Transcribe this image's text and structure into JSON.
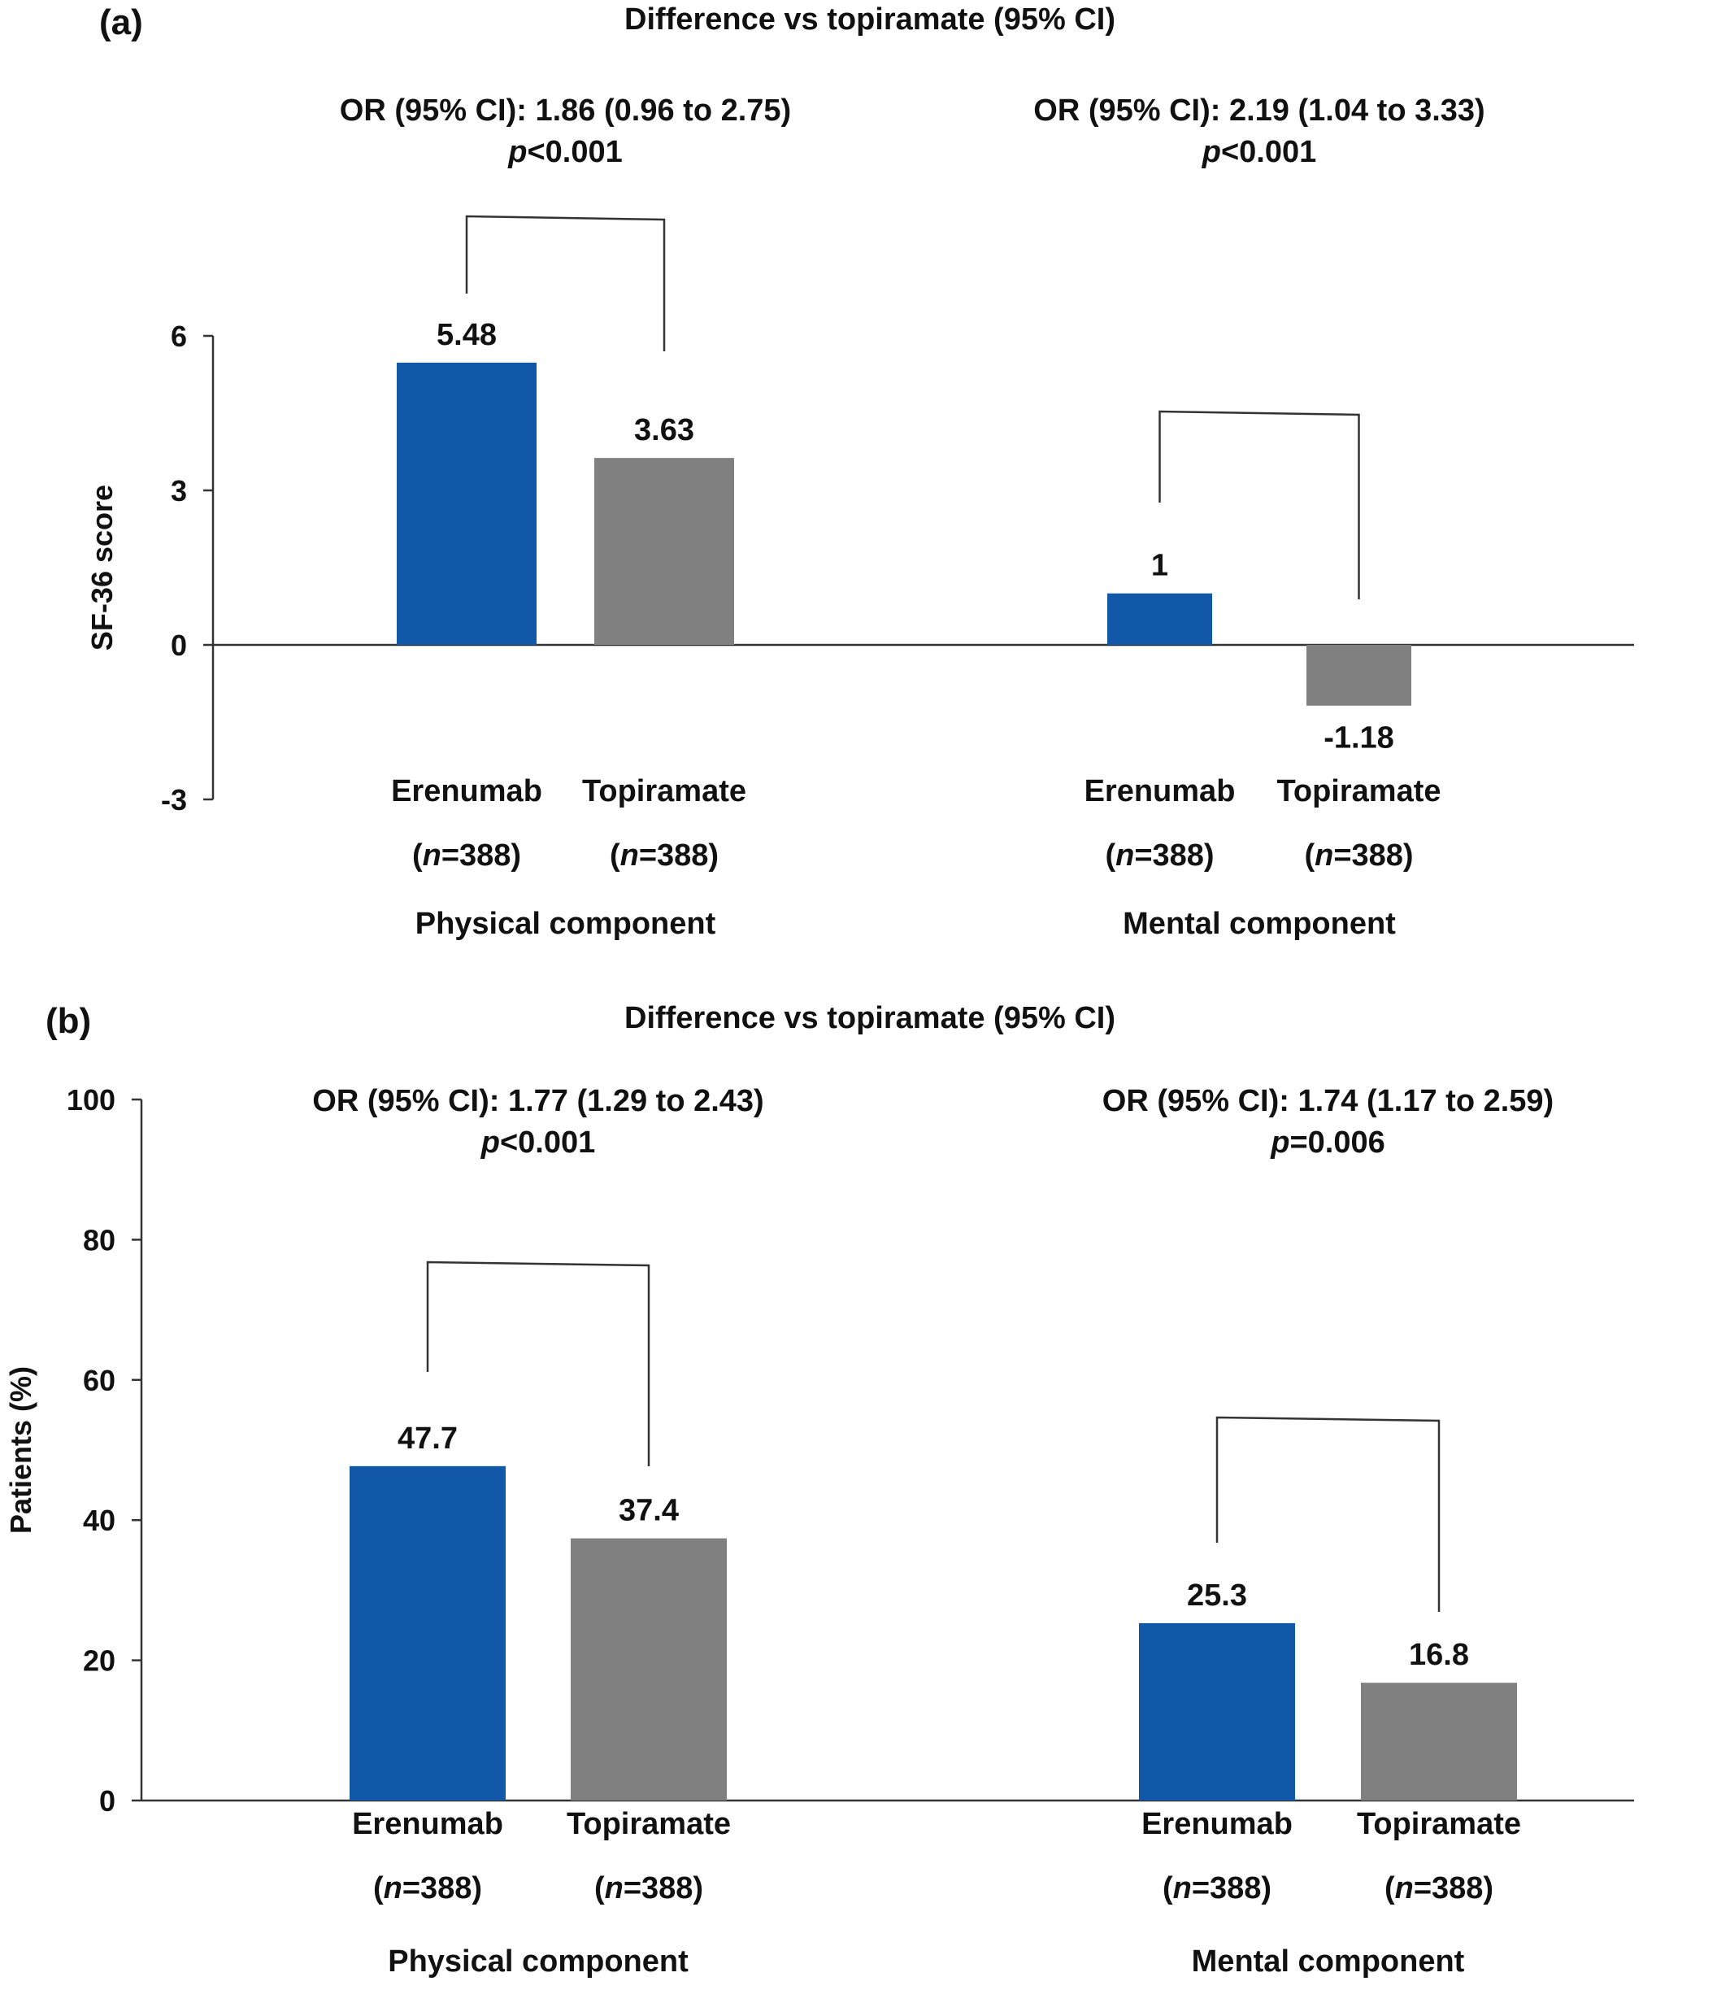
{
  "colors": {
    "erenumab": "#1158A8",
    "topiramate": "#808080",
    "axis": "#333333",
    "text": "#111111"
  },
  "chart_data": [
    {
      "type": "bar",
      "panel_label": "(a)",
      "title": "Difference vs topiramate (95% CI)",
      "ylabel": "SF-36 score",
      "ylim": [
        -3,
        6
      ],
      "yticks": [
        6,
        3,
        0,
        -3
      ],
      "grid": false,
      "series_names": [
        "Erenumab",
        "Topiramate"
      ],
      "groups": [
        {
          "name": "Physical component",
          "or_text": "OR (95% CI): 1.86 (0.96 to 2.75)",
          "p_symbol": "p",
          "p_value": "<0.001",
          "bars": [
            {
              "label": "Erenumab",
              "n_symbol": "n",
              "n_value": "=388",
              "value": 5.48,
              "value_label": "5.48",
              "color": "#1158A8"
            },
            {
              "label": "Topiramate",
              "n_symbol": "n",
              "n_value": "=388",
              "value": 3.63,
              "value_label": "3.63",
              "color": "#808080"
            }
          ]
        },
        {
          "name": "Mental component",
          "or_text": "OR (95% CI): 2.19 (1.04 to 3.33)",
          "p_symbol": "p",
          "p_value": "<0.001",
          "bars": [
            {
              "label": "Erenumab",
              "n_symbol": "n",
              "n_value": "=388",
              "value": 1,
              "value_label": "1",
              "color": "#1158A8"
            },
            {
              "label": "Topiramate",
              "n_symbol": "n",
              "n_value": "=388",
              "value": -1.18,
              "value_label": "-1.18",
              "color": "#808080"
            }
          ]
        }
      ]
    },
    {
      "type": "bar",
      "panel_label": "(b)",
      "title": "Difference vs topiramate (95% CI)",
      "ylabel": "Patients (%)",
      "ylim": [
        0,
        100
      ],
      "yticks": [
        100,
        80,
        60,
        40,
        20,
        0
      ],
      "grid": false,
      "series_names": [
        "Erenumab",
        "Topiramate"
      ],
      "groups": [
        {
          "name": "Physical component",
          "or_text": "OR (95% CI): 1.77 (1.29 to 2.43)",
          "p_symbol": "p",
          "p_value": "<0.001",
          "bars": [
            {
              "label": "Erenumab",
              "n_symbol": "n",
              "n_value": "=388",
              "value": 47.7,
              "value_label": "47.7",
              "color": "#1158A8"
            },
            {
              "label": "Topiramate",
              "n_symbol": "n",
              "n_value": "=388",
              "value": 37.4,
              "value_label": "37.4",
              "color": "#808080"
            }
          ]
        },
        {
          "name": "Mental component",
          "or_text": "OR (95% CI): 1.74 (1.17 to 2.59)",
          "p_symbol": "p",
          "p_value": "=0.006",
          "bars": [
            {
              "label": "Erenumab",
              "n_symbol": "n",
              "n_value": "=388",
              "value": 25.3,
              "value_label": "25.3",
              "color": "#1158A8"
            },
            {
              "label": "Topiramate",
              "n_symbol": "n",
              "n_value": "=388",
              "value": 16.8,
              "value_label": "16.8",
              "color": "#808080"
            }
          ]
        }
      ]
    }
  ]
}
